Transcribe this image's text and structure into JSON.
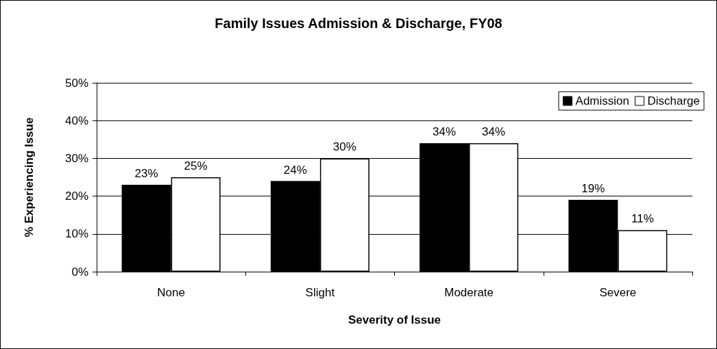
{
  "chart_data": {
    "type": "bar",
    "title": "Family Issues Admission & Discharge, FY08",
    "xlabel": "Severity of Issue",
    "ylabel": "% Experiencing Issue",
    "categories": [
      "None",
      "Slight",
      "Moderate",
      "Severe"
    ],
    "series": [
      {
        "name": "Admission",
        "color": "#000000",
        "values": [
          23,
          24,
          34,
          19
        ],
        "value_labels": [
          "23%",
          "24%",
          "34%",
          "19%"
        ]
      },
      {
        "name": "Discharge",
        "color": "#ffffff",
        "values": [
          25,
          30,
          34,
          11
        ],
        "value_labels": [
          "25%",
          "30%",
          "34%",
          "11%"
        ]
      }
    ],
    "ylim": [
      0,
      50
    ],
    "yticks": [
      {
        "value": 0,
        "label": "0%"
      },
      {
        "value": 10,
        "label": "10%"
      },
      {
        "value": 20,
        "label": "20%"
      },
      {
        "value": 30,
        "label": "30%"
      },
      {
        "value": 40,
        "label": "40%"
      },
      {
        "value": 50,
        "label": "50%"
      }
    ],
    "grid": "y",
    "legend": "top right"
  }
}
